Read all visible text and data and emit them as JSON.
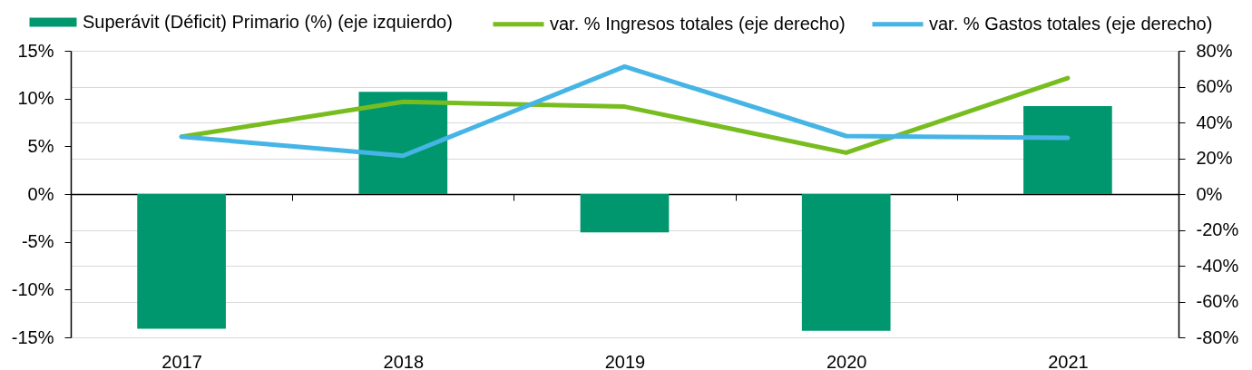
{
  "chart_data": {
    "type": "bar",
    "categories": [
      "2017",
      "2018",
      "2019",
      "2020",
      "2021"
    ],
    "series": [
      {
        "name": "Superávit (Déficit) Primario (%) (eje izquierdo)",
        "color": "#00976f",
        "values": [
          -14.1,
          10.7,
          -4.0,
          -14.3,
          9.2
        ]
      },
      {
        "name": "var. % Ingresos totales (eje derecho)",
        "type": "line",
        "axis": "y2",
        "color": "#78bd1f",
        "values": [
          32,
          51.5,
          48.8,
          23.1,
          64.8
        ]
      },
      {
        "name": "var. % Gastos totales (eje derecho)",
        "type": "line",
        "axis": "y2",
        "color": "#46b5e5",
        "values": [
          32,
          21.4,
          71.2,
          32.4,
          31.4
        ]
      }
    ],
    "ylim": [
      -15,
      15
    ],
    "yticks": [
      {
        "value": -15,
        "label": "-15%"
      },
      {
        "value": -10,
        "label": "-10%"
      },
      {
        "value": -5,
        "label": "-5%"
      },
      {
        "value": 0,
        "label": "0%"
      },
      {
        "value": 5,
        "label": "5%"
      },
      {
        "value": 10,
        "label": "10%"
      },
      {
        "value": 15,
        "label": "15%"
      }
    ],
    "y2lim": [
      -80,
      80
    ],
    "y2ticks": [
      {
        "value": -80,
        "label": "-80%"
      },
      {
        "value": -60,
        "label": "-60%"
      },
      {
        "value": -40,
        "label": "-40%"
      },
      {
        "value": -20,
        "label": "-20%"
      },
      {
        "value": 0,
        "label": "0%"
      },
      {
        "value": 20,
        "label": "20%"
      },
      {
        "value": 40,
        "label": "40%"
      },
      {
        "value": 60,
        "label": "60%"
      },
      {
        "value": 80,
        "label": "80%"
      }
    ],
    "grid": "y2",
    "legend": "top"
  }
}
